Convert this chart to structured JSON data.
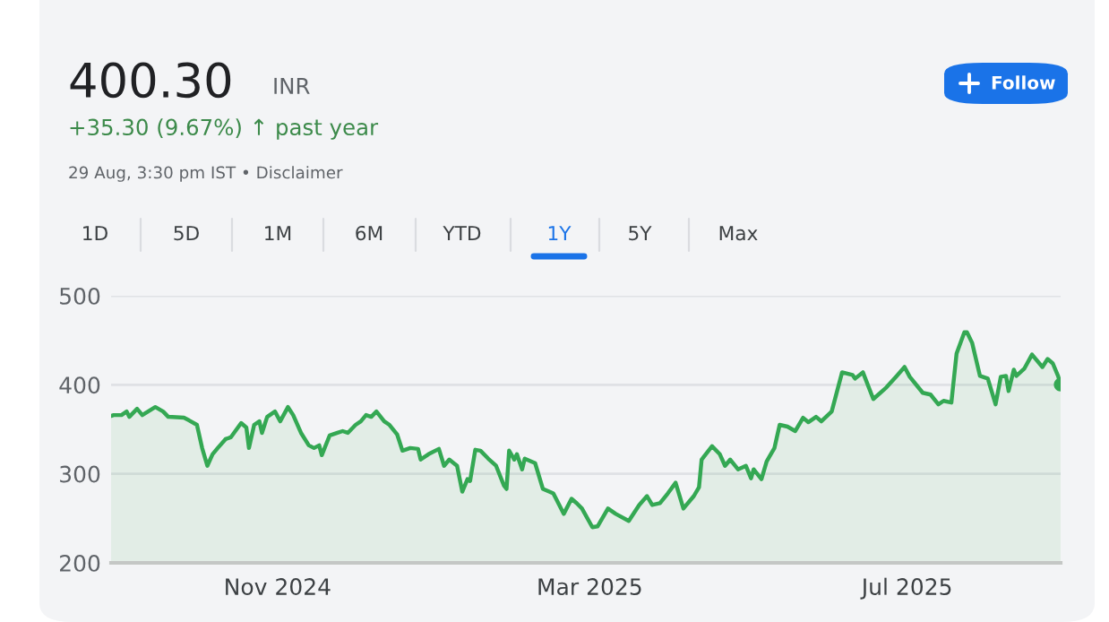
{
  "chart_data": {
    "type": "area",
    "title": "400.30",
    "subtitle": "+35.30 (9.67%) ↑ past year",
    "annotations": [
      "INR",
      "29 Aug, 3:30 pm IST • Disclaimer",
      "1D",
      "5D",
      "1M",
      "6M",
      "YTD",
      "1Y",
      "5Y",
      "Max",
      "Follow"
    ],
    "series": [
      {
        "color": "#34a853",
        "x": [
          "2024-08-29",
          "2024-08-30",
          "2024-09-02",
          "2024-09-04",
          "2024-09-05",
          "2024-09-08",
          "2024-09-10",
          "2024-09-15",
          "2024-09-18",
          "2024-09-20",
          "2024-09-26",
          "2024-09-28",
          "2024-10-01",
          "2024-10-03",
          "2024-10-05",
          "2024-10-07",
          "2024-10-09",
          "2024-10-12",
          "2024-10-14",
          "2024-10-16",
          "2024-10-18",
          "2024-10-20",
          "2024-10-21",
          "2024-10-23",
          "2024-10-25",
          "2024-10-26",
          "2024-10-28",
          "2024-10-31",
          "2024-11-02",
          "2024-11-05",
          "2024-11-07",
          "2024-11-10",
          "2024-11-13",
          "2024-11-15",
          "2024-11-17",
          "2024-11-18",
          "2024-11-21",
          "2024-11-24",
          "2024-11-26",
          "2024-11-28",
          "2024-12-01",
          "2024-12-03",
          "2024-12-05",
          "2024-12-07",
          "2024-12-09",
          "2024-12-12",
          "2024-12-14",
          "2024-12-17",
          "2024-12-19",
          "2024-12-22",
          "2024-12-25",
          "2024-12-26",
          "2024-12-29",
          "2025-01-02",
          "2025-01-04",
          "2025-01-06",
          "2025-01-09",
          "2025-01-11",
          "2025-01-13",
          "2025-01-14",
          "2025-01-16",
          "2025-01-18",
          "2025-01-21",
          "2025-01-24",
          "2025-01-27",
          "2025-01-28",
          "2025-01-29",
          "2025-01-31",
          "2025-02-01",
          "2025-02-03",
          "2025-02-04",
          "2025-02-08",
          "2025-02-11",
          "2025-02-15",
          "2025-02-19",
          "2025-02-22",
          "2025-02-24",
          "2025-02-26",
          "2025-03-02",
          "2025-03-04",
          "2025-03-08",
          "2025-03-11",
          "2025-03-16",
          "2025-03-20",
          "2025-03-23",
          "2025-03-25",
          "2025-03-28",
          "2025-03-31",
          "2025-04-03",
          "2025-04-06",
          "2025-04-10",
          "2025-04-12",
          "2025-04-13",
          "2025-04-17",
          "2025-04-20",
          "2025-04-22",
          "2025-04-24",
          "2025-04-27",
          "2025-04-30",
          "2025-05-02",
          "2025-05-03",
          "2025-05-06",
          "2025-05-08",
          "2025-05-11",
          "2025-05-13",
          "2025-05-16",
          "2025-05-19",
          "2025-05-22",
          "2025-05-24",
          "2025-05-27",
          "2025-05-29",
          "2025-06-02",
          "2025-06-06",
          "2025-06-10",
          "2025-06-11",
          "2025-06-14",
          "2025-06-18",
          "2025-06-23",
          "2025-06-27",
          "2025-06-30",
          "2025-07-02",
          "2025-07-07",
          "2025-07-10",
          "2025-07-13",
          "2025-07-15",
          "2025-07-18",
          "2025-07-20",
          "2025-07-23",
          "2025-07-24",
          "2025-07-26",
          "2025-07-29",
          "2025-08-01",
          "2025-08-04",
          "2025-08-06",
          "2025-08-08",
          "2025-08-09",
          "2025-08-11",
          "2025-08-12",
          "2025-08-15",
          "2025-08-18",
          "2025-08-22",
          "2025-08-24",
          "2025-08-26",
          "2025-08-28",
          "2025-08-29"
        ],
        "values": [
          365,
          366,
          366,
          370,
          364,
          373,
          366,
          375,
          370,
          364,
          363,
          360,
          355,
          329,
          309,
          322,
          329,
          339,
          341,
          349,
          357,
          352,
          329,
          355,
          359,
          346,
          364,
          370,
          359,
          375,
          366,
          346,
          332,
          329,
          332,
          321,
          343,
          346,
          348,
          346,
          355,
          359,
          366,
          364,
          370,
          359,
          355,
          344,
          326,
          329,
          328,
          316,
          322,
          328,
          309,
          316,
          309,
          280,
          294,
          292,
          327,
          326,
          317,
          309,
          287,
          283,
          326,
          316,
          322,
          305,
          317,
          312,
          283,
          278,
          255,
          272,
          267,
          261,
          240,
          241,
          261,
          255,
          247,
          265,
          275,
          265,
          267,
          278,
          290,
          261,
          275,
          285,
          316,
          331,
          322,
          309,
          316,
          305,
          309,
          295,
          305,
          294,
          314,
          329,
          355,
          353,
          348,
          363,
          358,
          364,
          359,
          370,
          414,
          411,
          407,
          414,
          384,
          397,
          410,
          420,
          409,
          391,
          389,
          378,
          382,
          380,
          435,
          459,
          459,
          447,
          410,
          407,
          378,
          409,
          410,
          393,
          417,
          410,
          418,
          434,
          420,
          429,
          424,
          410,
          400.3
        ]
      },
      {
        "type": "scatter",
        "color": "#34a853",
        "x": [
          "2025-08-29"
        ],
        "values": [
          400.3
        ]
      }
    ],
    "xlim": [
      "2024-08-29",
      "2025-08-29"
    ],
    "xticks": [
      {
        "value": "2024-11-01",
        "label": "Nov 2024"
      },
      {
        "value": "2025-03-01",
        "label": "Mar 2025"
      },
      {
        "value": "2025-07-01",
        "label": "Jul 2025"
      }
    ],
    "ylim": [
      200,
      500
    ],
    "yticks": [
      200,
      300,
      400,
      500
    ],
    "grid": "y",
    "legend": false
  }
}
